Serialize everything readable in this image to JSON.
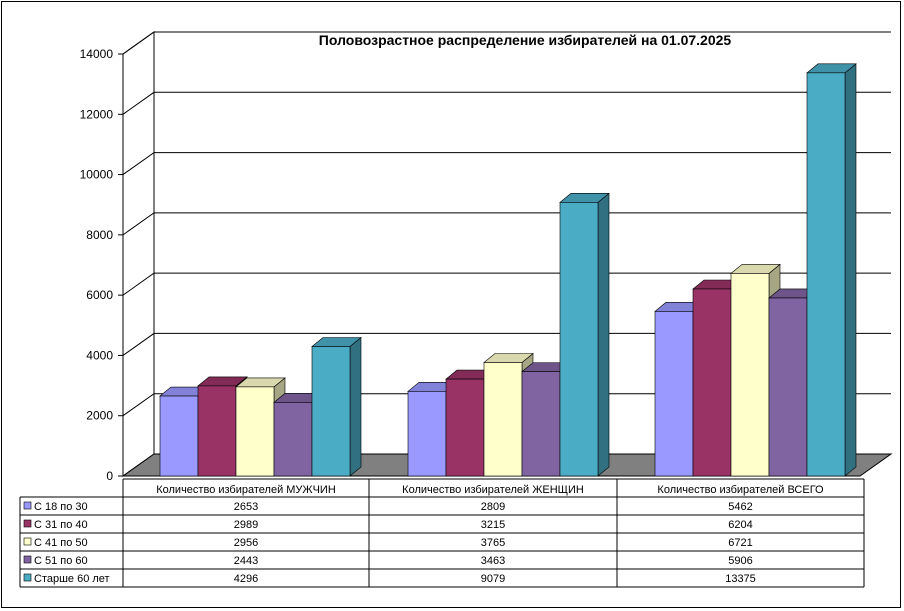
{
  "chart_data": {
    "type": "bar",
    "title": "Половозрастное распределение избирателей на 01.07.2025",
    "categories": [
      "Количество избирателей МУЖЧИН",
      "Количество избирателей ЖЕНЩИН",
      "Количество избирателей ВСЕГО"
    ],
    "series": [
      {
        "name": "С 18 по 30",
        "values": [
          2653,
          2809,
          5462
        ],
        "color": "#9999FF"
      },
      {
        "name": "С 31 по 40",
        "values": [
          2989,
          3215,
          6204
        ],
        "color": "#993366"
      },
      {
        "name": "С 41 по 50",
        "values": [
          2956,
          3765,
          6721
        ],
        "color": "#FFFFCC"
      },
      {
        "name": "С 51 по 60",
        "values": [
          2443,
          3463,
          5906
        ],
        "color": "#8064A2"
      },
      {
        "name": "Старше 60 лет",
        "values": [
          4296,
          9079,
          13375
        ],
        "color": "#4BACC6"
      }
    ],
    "y_ticks": [
      "0",
      "2000",
      "4000",
      "6000",
      "8000",
      "10000",
      "12000",
      "14000"
    ],
    "ylim": [
      0,
      14000
    ],
    "grid": true,
    "legend": "data-table",
    "data_table": [
      [
        "2653",
        "2809",
        "5462"
      ],
      [
        "2989",
        "3215",
        "6204"
      ],
      [
        "2956",
        "3765",
        "6721"
      ],
      [
        "2443",
        "3463",
        "5906"
      ],
      [
        "4296",
        "9079",
        "13375"
      ]
    ]
  }
}
